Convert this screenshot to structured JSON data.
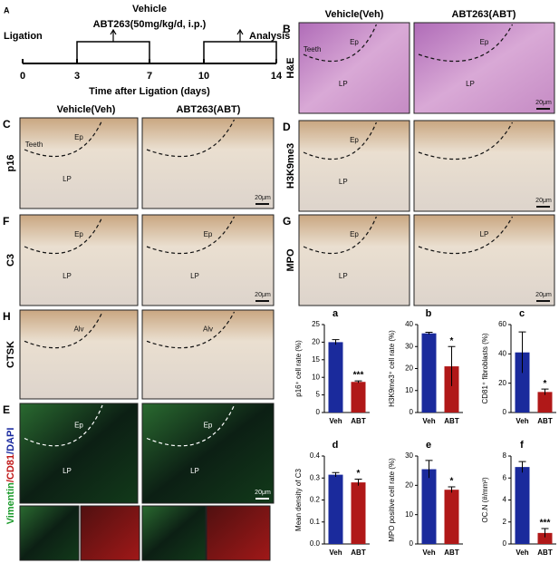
{
  "timeline": {
    "letter": "A",
    "start": "Ligation",
    "vehicle": "Vehicle",
    "drug": "ABT263(50mg/kg/d, i.p.)",
    "analysis": "Analysis",
    "ticks": [
      0,
      3,
      7,
      10,
      14
    ],
    "axis_label": "Time after Ligation (days)"
  },
  "headers": {
    "left": [
      "Vehicle(Veh)",
      "ABT263(ABT)"
    ],
    "right": [
      "Vehicle(Veh)",
      "ABT263(ABT)"
    ]
  },
  "micrographs": [
    {
      "letter": "B",
      "stain": "H&E",
      "images": [
        {
          "labels": [
            "Ep",
            "LP",
            "Teeth"
          ]
        },
        {
          "labels": [
            "Ep",
            "LP"
          ],
          "scale": "20μm"
        }
      ]
    },
    {
      "letter": "C",
      "stain": "p16",
      "images": [
        {
          "labels": [
            "Ep",
            "LP",
            "Teeth"
          ]
        },
        {
          "labels": [],
          "scale": "20μm"
        }
      ]
    },
    {
      "letter": "D",
      "stain": "H3K9me3",
      "images": [
        {
          "labels": [
            "Ep",
            "LP"
          ]
        },
        {
          "labels": [],
          "scale": "20μm"
        }
      ]
    },
    {
      "letter": "F",
      "stain": "C3",
      "images": [
        {
          "labels": [
            "Ep",
            "LP"
          ]
        },
        {
          "labels": [
            "Ep",
            "LP"
          ],
          "scale": "20μm"
        }
      ]
    },
    {
      "letter": "G",
      "stain": "MPO",
      "images": [
        {
          "labels": [
            "Ep",
            "LP"
          ]
        },
        {
          "labels": [
            "LP"
          ],
          "scale": "20μm"
        }
      ]
    },
    {
      "letter": "H",
      "stain": "CTSK",
      "images": [
        {
          "labels": [
            "Alv"
          ]
        },
        {
          "labels": [
            "Alv"
          ]
        }
      ]
    },
    {
      "letter": "E",
      "stain_parts": [
        {
          "text": "Vimentin",
          "color": "#1a9a2a"
        },
        {
          "text": "/CD81",
          "color": "#c01818"
        },
        {
          "text": "/DAPI",
          "color": "#1a2aa0"
        }
      ],
      "images": [
        {
          "labels": [
            "Ep",
            "LP"
          ]
        },
        {
          "labels": [
            "Ep",
            "LP"
          ],
          "scale": "20μm"
        }
      ]
    }
  ],
  "chart_data": [
    {
      "type": "bar",
      "label": "a",
      "y_label": "p16⁺ cell rate (%)",
      "categories": [
        "Veh",
        "ABT"
      ],
      "values": [
        20,
        8.7
      ],
      "errors": [
        0.7,
        0.3
      ],
      "colors": [
        "#1a2a9c",
        "#b01818"
      ],
      "annotation": "***",
      "ylim": [
        0,
        25
      ],
      "yticks": [
        0,
        5,
        10,
        15,
        20,
        25
      ]
    },
    {
      "type": "bar",
      "label": "b",
      "y_label": "H3K9me3⁺ cell rate (%)",
      "categories": [
        "Veh",
        "ABT"
      ],
      "values": [
        36,
        21
      ],
      "errors": [
        0.5,
        9
      ],
      "colors": [
        "#1a2a9c",
        "#b01818"
      ],
      "annotation": "*",
      "ylim": [
        0,
        40
      ],
      "yticks": [
        0,
        10,
        20,
        30,
        40
      ]
    },
    {
      "type": "bar",
      "label": "c",
      "y_label": "CD81⁺ fibroblasts (%)",
      "categories": [
        "Veh",
        "ABT"
      ],
      "values": [
        41,
        14
      ],
      "errors": [
        14,
        2
      ],
      "colors": [
        "#1a2a9c",
        "#b01818"
      ],
      "annotation": "*",
      "ylim": [
        0,
        60
      ],
      "yticks": [
        0,
        20,
        40,
        60
      ]
    },
    {
      "type": "bar",
      "label": "d",
      "y_label": "Mean density of C3",
      "categories": [
        "Veh",
        "ABT"
      ],
      "values": [
        0.315,
        0.28
      ],
      "errors": [
        0.01,
        0.015
      ],
      "colors": [
        "#1a2a9c",
        "#b01818"
      ],
      "annotation": "*",
      "ylim": [
        0,
        0.4
      ],
      "yticks": [
        {
          "value": 0,
          "label": "0.0"
        },
        0.1,
        0.2,
        0.3,
        0.4
      ]
    },
    {
      "type": "bar",
      "label": "e",
      "y_label": "MPO positive cell rate (%)",
      "categories": [
        "Veh",
        "ABT"
      ],
      "values": [
        25.5,
        18.5
      ],
      "errors": [
        3,
        1
      ],
      "colors": [
        "#1a2a9c",
        "#b01818"
      ],
      "annotation": "*",
      "ylim": [
        0,
        30
      ],
      "yticks": [
        0,
        10,
        20,
        30
      ]
    },
    {
      "type": "bar",
      "label": "f",
      "y_label": "OC.N (#/mm²)",
      "categories": [
        "Veh",
        "ABT"
      ],
      "values": [
        7,
        1
      ],
      "errors": [
        0.5,
        0.4
      ],
      "colors": [
        "#1a2a9c",
        "#b01818"
      ],
      "annotation": "***",
      "ylim": [
        0,
        8
      ],
      "yticks": [
        0,
        2,
        4,
        6,
        8
      ]
    }
  ]
}
